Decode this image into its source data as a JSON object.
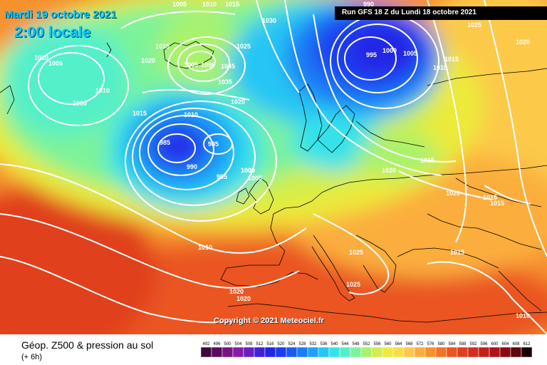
{
  "header": {
    "date": "Mardi 19 octobre 2021",
    "local_time": "2:00 locale",
    "run": "Run GFS 18 Z du Lundi 18 octobre 2021"
  },
  "copyright": "Copyright © 2021 Meteociel.fr",
  "legend": {
    "title": "Géop. Z500 & pression au sol",
    "subtitle": "(+ 6h)",
    "scale_values": [
      "492",
      "496",
      "500",
      "504",
      "508",
      "512",
      "516",
      "520",
      "524",
      "528",
      "532",
      "536",
      "540",
      "544",
      "548",
      "552",
      "556",
      "560",
      "564",
      "568",
      "572",
      "576",
      "580",
      "584",
      "588",
      "592",
      "596",
      "600",
      "604",
      "608",
      "612"
    ],
    "scale_colors": [
      "#3a0a3a",
      "#5a0a5e",
      "#7a1283",
      "#8a1aa8",
      "#6a1fc4",
      "#4023d6",
      "#2226e6",
      "#1c3cf0",
      "#1b5bf4",
      "#1a7cf6",
      "#1da2f6",
      "#25c6f4",
      "#35e2ea",
      "#52f0c9",
      "#7cf39a",
      "#a9f26c",
      "#d0ee4c",
      "#ecea3a",
      "#f8dc4a",
      "#fcc94a",
      "#fbae3e",
      "#f7912e",
      "#f27324",
      "#ea5520",
      "#e03f1e",
      "#d42e1c",
      "#c41f1a",
      "#b01318",
      "#8a0c12",
      "#5e070c",
      "#1a0000"
    ]
  },
  "isobar_labels": [
    {
      "text": "1005"
    },
    {
      "text": "1010"
    },
    {
      "text": "1015"
    },
    {
      "text": "1030"
    },
    {
      "text": "990"
    },
    {
      "text": "1025"
    },
    {
      "text": "1010"
    },
    {
      "text": "1005"
    },
    {
      "text": "1015"
    },
    {
      "text": "1020"
    },
    {
      "text": "1010"
    },
    {
      "text": "1000"
    },
    {
      "text": "995"
    },
    {
      "text": "1000"
    },
    {
      "text": "1005"
    },
    {
      "text": "1015"
    },
    {
      "text": "1020"
    },
    {
      "text": "1010"
    },
    {
      "text": "1005"
    },
    {
      "text": "1015"
    },
    {
      "text": "1020"
    },
    {
      "text": "1010"
    },
    {
      "text": "1050"
    },
    {
      "text": "1045"
    },
    {
      "text": "1035"
    },
    {
      "text": "1025"
    },
    {
      "text": "1000"
    },
    {
      "text": "1015"
    },
    {
      "text": "1020"
    },
    {
      "text": "985"
    },
    {
      "text": "985"
    },
    {
      "text": "990"
    },
    {
      "text": "995"
    },
    {
      "text": "1000"
    },
    {
      "text": "1005"
    },
    {
      "text": "1020"
    },
    {
      "text": "1015"
    },
    {
      "text": "1015"
    },
    {
      "text": "1010"
    },
    {
      "text": "1025"
    },
    {
      "text": "1015"
    },
    {
      "text": "1025"
    },
    {
      "text": "1020"
    },
    {
      "text": "1020"
    },
    {
      "text": "1010"
    }
  ]
}
